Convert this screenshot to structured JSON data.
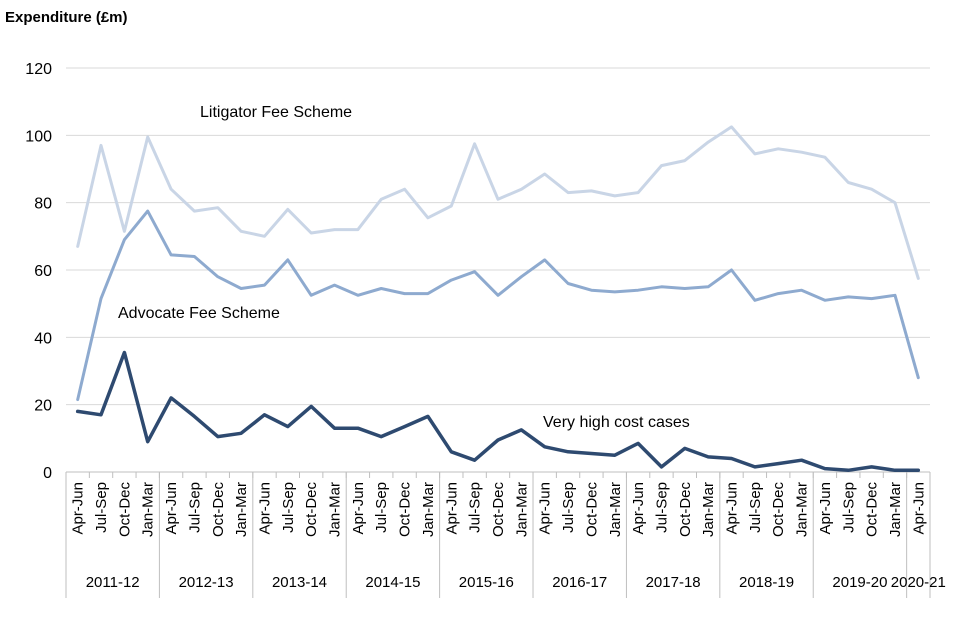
{
  "chart_data": {
    "type": "line",
    "ylabel": "Expenditure (£m)",
    "ylim": [
      0,
      120
    ],
    "yticks": [
      0,
      20,
      40,
      60,
      80,
      100,
      120
    ],
    "grid": true,
    "categories": [
      "Apr-Jun",
      "Jul-Sep",
      "Oct-Dec",
      "Jan-Mar",
      "Apr-Jun",
      "Jul-Sep",
      "Oct-Dec",
      "Jan-Mar",
      "Apr-Jun",
      "Jul-Sep",
      "Oct-Dec",
      "Jan-Mar",
      "Apr-Jun",
      "Jul-Sep",
      "Oct-Dec",
      "Jan-Mar",
      "Apr-Jun",
      "Jul-Sep",
      "Oct-Dec",
      "Jan-Mar",
      "Apr-Jun",
      "Jul-Sep",
      "Oct-Dec",
      "Jan-Mar",
      "Apr-Jun",
      "Jul-Sep",
      "Oct-Dec",
      "Jan-Mar",
      "Apr-Jun",
      "Jul-Sep",
      "Oct-Dec",
      "Jan-Mar",
      "Apr-Jun",
      "Jul-Sep",
      "Oct-Dec",
      "Jan-Mar",
      "Apr-Jun"
    ],
    "groups": [
      {
        "label": "2011-12",
        "span": 4
      },
      {
        "label": "2012-13",
        "span": 4
      },
      {
        "label": "2013-14",
        "span": 4
      },
      {
        "label": "2014-15",
        "span": 4
      },
      {
        "label": "2015-16",
        "span": 4
      },
      {
        "label": "2016-17",
        "span": 4
      },
      {
        "label": "2017-18",
        "span": 4
      },
      {
        "label": "2018-19",
        "span": 4
      },
      {
        "label": "2019-20",
        "span": 4
      },
      {
        "label": "2020-21",
        "span": 1
      }
    ],
    "series": [
      {
        "name": "Litigator Fee Scheme",
        "color": "#c9d5e6",
        "values": [
          67,
          97,
          71.5,
          99.5,
          84,
          77.5,
          78.5,
          71.5,
          70,
          78,
          71,
          72,
          72,
          81,
          84,
          75.5,
          79,
          97.5,
          81,
          84,
          88.5,
          83,
          83.5,
          82,
          83,
          91,
          92.5,
          98,
          102.5,
          94.5,
          96,
          95,
          93.5,
          86,
          84,
          80,
          57.5
        ]
      },
      {
        "name": "Advocate Fee Scheme",
        "color": "#8eaacf",
        "values": [
          21.5,
          51.5,
          69,
          77.5,
          64.5,
          64,
          58,
          54.5,
          55.5,
          63,
          52.5,
          55.5,
          52.5,
          54.5,
          53,
          53,
          57,
          59.5,
          52.5,
          58,
          63,
          56,
          54,
          53.5,
          54,
          55,
          54.5,
          55,
          60,
          51,
          53,
          54,
          51,
          52,
          51.5,
          52.5,
          28
        ]
      },
      {
        "name": "Very high cost cases",
        "color": "#2e4a70",
        "values": [
          18,
          17,
          35.5,
          9,
          22,
          16.5,
          10.5,
          11.5,
          17,
          13.5,
          19.5,
          13,
          13,
          10.5,
          13.5,
          16.5,
          6,
          3.5,
          9.5,
          12.5,
          7.5,
          6,
          5.5,
          5,
          8.5,
          1.5,
          7,
          4.5,
          4,
          1.5,
          2.5,
          3.5,
          1,
          0.5,
          1.5,
          0.5,
          0.5
        ]
      }
    ]
  }
}
